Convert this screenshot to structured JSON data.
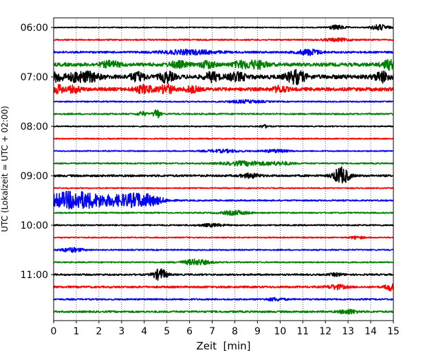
{
  "chart_data": {
    "type": "line",
    "title": "",
    "xlabel": "Zeit  [min]",
    "ylabel": "UTC (Lokalzeit = UTC + 02:00)",
    "xlim": [
      0,
      15
    ],
    "x_ticks": [
      "0",
      "1",
      "2",
      "3",
      "4",
      "5",
      "6",
      "7",
      "8",
      "9",
      "10",
      "11",
      "12",
      "13",
      "14",
      "15"
    ],
    "y_ticks": [
      "06:00",
      "07:00",
      "08:00",
      "09:00",
      "10:00",
      "11:00"
    ],
    "grid": "vertical dotted",
    "trace_start": "06:00",
    "trace_interval_min": 15,
    "trace_colors": [
      "#000000",
      "#ff0000",
      "#0000ff",
      "#008000"
    ],
    "series": [
      {
        "label": "06:00",
        "color": "#000000",
        "noise": 0.7,
        "bursts": [
          {
            "t": 12.5,
            "a": 3,
            "d": 0.4
          },
          {
            "t": 14.4,
            "a": 4,
            "d": 0.4
          }
        ]
      },
      {
        "label": "06:15",
        "color": "#ff0000",
        "noise": 1.0,
        "bursts": [
          {
            "t": 12.5,
            "a": 2,
            "d": 0.6
          }
        ]
      },
      {
        "label": "06:30",
        "color": "#0000ff",
        "noise": 1.4,
        "bursts": [
          {
            "t": 6.0,
            "a": 3,
            "d": 1.2
          },
          {
            "t": 11.3,
            "a": 4,
            "d": 0.5
          }
        ]
      },
      {
        "label": "06:45",
        "color": "#008000",
        "noise": 2.5,
        "bursts": [
          {
            "t": 2.5,
            "a": 4,
            "d": 0.4
          },
          {
            "t": 5.5,
            "a": 4,
            "d": 0.4
          },
          {
            "t": 6.8,
            "a": 5,
            "d": 0.3
          },
          {
            "t": 8.3,
            "a": 4,
            "d": 0.4
          },
          {
            "t": 9.0,
            "a": 5,
            "d": 0.4
          },
          {
            "t": 14.8,
            "a": 6,
            "d": 0.3
          }
        ]
      },
      {
        "label": "07:00",
        "color": "#000000",
        "noise": 3.0,
        "bursts": [
          {
            "t": 0.2,
            "a": 6,
            "d": 0.3
          },
          {
            "t": 1.0,
            "a": 6,
            "d": 0.3
          },
          {
            "t": 1.6,
            "a": 6,
            "d": 0.4
          },
          {
            "t": 3.7,
            "a": 6,
            "d": 0.3
          },
          {
            "t": 5.0,
            "a": 7,
            "d": 0.3
          },
          {
            "t": 7.0,
            "a": 6,
            "d": 0.3
          },
          {
            "t": 8.1,
            "a": 5,
            "d": 0.4
          },
          {
            "t": 10.7,
            "a": 9,
            "d": 0.4
          },
          {
            "t": 14.5,
            "a": 7,
            "d": 0.3
          }
        ]
      },
      {
        "label": "07:15",
        "color": "#ff0000",
        "noise": 2.5,
        "bursts": [
          {
            "t": 0.2,
            "a": 5,
            "d": 0.3
          },
          {
            "t": 0.9,
            "a": 4,
            "d": 0.3
          },
          {
            "t": 4.0,
            "a": 5,
            "d": 0.4
          },
          {
            "t": 5.0,
            "a": 6,
            "d": 0.3
          },
          {
            "t": 6.1,
            "a": 4,
            "d": 0.3
          },
          {
            "t": 10.0,
            "a": 4,
            "d": 0.3
          }
        ]
      },
      {
        "label": "07:30",
        "color": "#0000ff",
        "noise": 0.9,
        "bursts": [
          {
            "t": 8.5,
            "a": 2,
            "d": 0.8
          }
        ]
      },
      {
        "label": "07:45",
        "color": "#008000",
        "noise": 1.1,
        "bursts": [
          {
            "t": 3.9,
            "a": 3,
            "d": 0.2
          },
          {
            "t": 4.55,
            "a": 7,
            "d": 0.15
          }
        ]
      },
      {
        "label": "08:00",
        "color": "#000000",
        "noise": 0.8,
        "bursts": [
          {
            "t": 9.3,
            "a": 2,
            "d": 0.2
          }
        ]
      },
      {
        "label": "08:15",
        "color": "#ff0000",
        "noise": 0.8,
        "bursts": []
      },
      {
        "label": "08:30",
        "color": "#0000ff",
        "noise": 0.8,
        "bursts": [
          {
            "t": 7.5,
            "a": 2,
            "d": 0.8
          },
          {
            "t": 9.8,
            "a": 2,
            "d": 0.6
          }
        ]
      },
      {
        "label": "08:45",
        "color": "#008000",
        "noise": 1.0,
        "bursts": [
          {
            "t": 8.5,
            "a": 3,
            "d": 1.0
          },
          {
            "t": 10.0,
            "a": 2,
            "d": 0.6
          }
        ]
      },
      {
        "label": "09:00",
        "color": "#000000",
        "noise": 1.5,
        "bursts": [
          {
            "t": 8.7,
            "a": 3,
            "d": 0.4
          },
          {
            "t": 12.7,
            "a": 12,
            "d": 0.35
          }
        ]
      },
      {
        "label": "09:15",
        "color": "#ff0000",
        "noise": 0.8,
        "bursts": []
      },
      {
        "label": "09:30",
        "color": "#0000ff",
        "noise": 1.0,
        "bursts": [
          {
            "t": 0.85,
            "a": 13,
            "d": 1.3
          },
          {
            "t": 3.0,
            "a": 6,
            "d": 1.2
          },
          {
            "t": 4.0,
            "a": 7,
            "d": 0.8
          }
        ]
      },
      {
        "label": "09:45",
        "color": "#008000",
        "noise": 0.9,
        "bursts": [
          {
            "t": 8.0,
            "a": 3,
            "d": 0.6
          }
        ]
      },
      {
        "label": "10:00",
        "color": "#000000",
        "noise": 1.0,
        "bursts": [
          {
            "t": 7.0,
            "a": 2,
            "d": 0.5
          }
        ]
      },
      {
        "label": "10:15",
        "color": "#ff0000",
        "noise": 0.8,
        "bursts": [
          {
            "t": 13.4,
            "a": 2,
            "d": 0.3
          }
        ]
      },
      {
        "label": "10:30",
        "color": "#0000ff",
        "noise": 0.9,
        "bursts": [
          {
            "t": 0.8,
            "a": 3,
            "d": 0.5
          }
        ]
      },
      {
        "label": "10:45",
        "color": "#008000",
        "noise": 0.9,
        "bursts": [
          {
            "t": 6.3,
            "a": 4,
            "d": 0.6
          }
        ]
      },
      {
        "label": "11:00",
        "color": "#000000",
        "noise": 1.2,
        "bursts": [
          {
            "t": 4.7,
            "a": 8,
            "d": 0.3
          },
          {
            "t": 12.5,
            "a": 2,
            "d": 0.3
          }
        ]
      },
      {
        "label": "11:15",
        "color": "#ff0000",
        "noise": 1.4,
        "bursts": [
          {
            "t": 12.5,
            "a": 3,
            "d": 0.4
          },
          {
            "t": 14.85,
            "a": 5,
            "d": 0.2
          }
        ]
      },
      {
        "label": "11:30",
        "color": "#0000ff",
        "noise": 1.1,
        "bursts": [
          {
            "t": 9.8,
            "a": 2,
            "d": 0.4
          }
        ]
      },
      {
        "label": "11:45",
        "color": "#008000",
        "noise": 1.3,
        "bursts": [
          {
            "t": 13.0,
            "a": 3,
            "d": 0.4
          }
        ]
      }
    ]
  }
}
